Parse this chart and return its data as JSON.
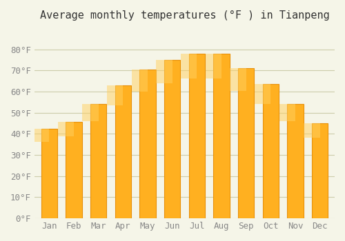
{
  "title": "Average monthly temperatures (°F ) in Tianpeng",
  "months": [
    "Jan",
    "Feb",
    "Mar",
    "Apr",
    "May",
    "Jun",
    "Jul",
    "Aug",
    "Sep",
    "Oct",
    "Nov",
    "Dec"
  ],
  "values": [
    42.5,
    45.5,
    54.0,
    63.0,
    70.5,
    75.0,
    78.0,
    78.0,
    71.0,
    63.5,
    54.0,
    45.0
  ],
  "bar_color_face": "#FFA500",
  "bar_color_edge": "#FF8C00",
  "bar_gradient_top": "#FFD700",
  "ylim": [
    0,
    90
  ],
  "yticks": [
    0,
    10,
    20,
    30,
    40,
    50,
    60,
    70,
    80
  ],
  "ytick_labels": [
    "0°F",
    "10°F",
    "20°F",
    "30°F",
    "40°F",
    "50°F",
    "60°F",
    "70°F",
    "80°F"
  ],
  "background_color": "#f5f5e8",
  "grid_color": "#ccccaa",
  "title_fontsize": 11,
  "tick_fontsize": 9
}
